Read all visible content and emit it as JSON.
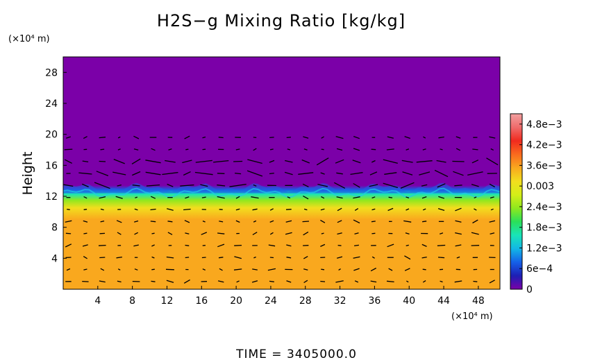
{
  "chart_data": {
    "type": "heatmap",
    "title": "H2S−g Mixing Ratio [kg/kg]",
    "ylabel": "Height",
    "x_unit": "(×10⁴ m)",
    "y_unit": "(×10⁴ m)",
    "xlim": [
      0,
      50.5
    ],
    "ylim": [
      0,
      30
    ],
    "x_ticks": [
      4,
      8,
      12,
      16,
      20,
      24,
      28,
      32,
      36,
      40,
      44,
      48
    ],
    "y_ticks": [
      4,
      8,
      12,
      16,
      20,
      24,
      28
    ],
    "y_profile": [
      {
        "height": 0,
        "value": 0.0037
      },
      {
        "height": 9.0,
        "value": 0.0037
      },
      {
        "height": 10.5,
        "value": 0.003
      },
      {
        "height": 11.5,
        "value": 0.0024
      },
      {
        "height": 12.3,
        "value": 0.0016
      },
      {
        "height": 12.8,
        "value": 0.0008
      },
      {
        "height": 13.4,
        "value": 0.0
      },
      {
        "height": 30,
        "value": 0.0
      }
    ],
    "vectors": "wind vector field (arrows) overlaid",
    "colorbar": {
      "min": 0,
      "max": 0.0051,
      "labels": [
        "4.8e−3",
        "4.2e−3",
        "3.6e−3",
        "0.003",
        "2.4e−3",
        "1.8e−3",
        "1.2e−3",
        "6e−4",
        "0"
      ],
      "label_values": [
        0.0048,
        0.0042,
        0.0036,
        0.003,
        0.0024,
        0.0018,
        0.0012,
        0.0006,
        0
      ],
      "colors": [
        "#7b00a8",
        "#1d1fb4",
        "#1560e8",
        "#12b7e6",
        "#19e4b8",
        "#2ae05a",
        "#8fe81e",
        "#d4ee18",
        "#f2de1e",
        "#f9a81e",
        "#fa6a1e",
        "#f02a1e",
        "#ef6b6b",
        "#f2a0a0"
      ]
    }
  },
  "footer": {
    "time_label": "TIME = 3405000.0"
  }
}
